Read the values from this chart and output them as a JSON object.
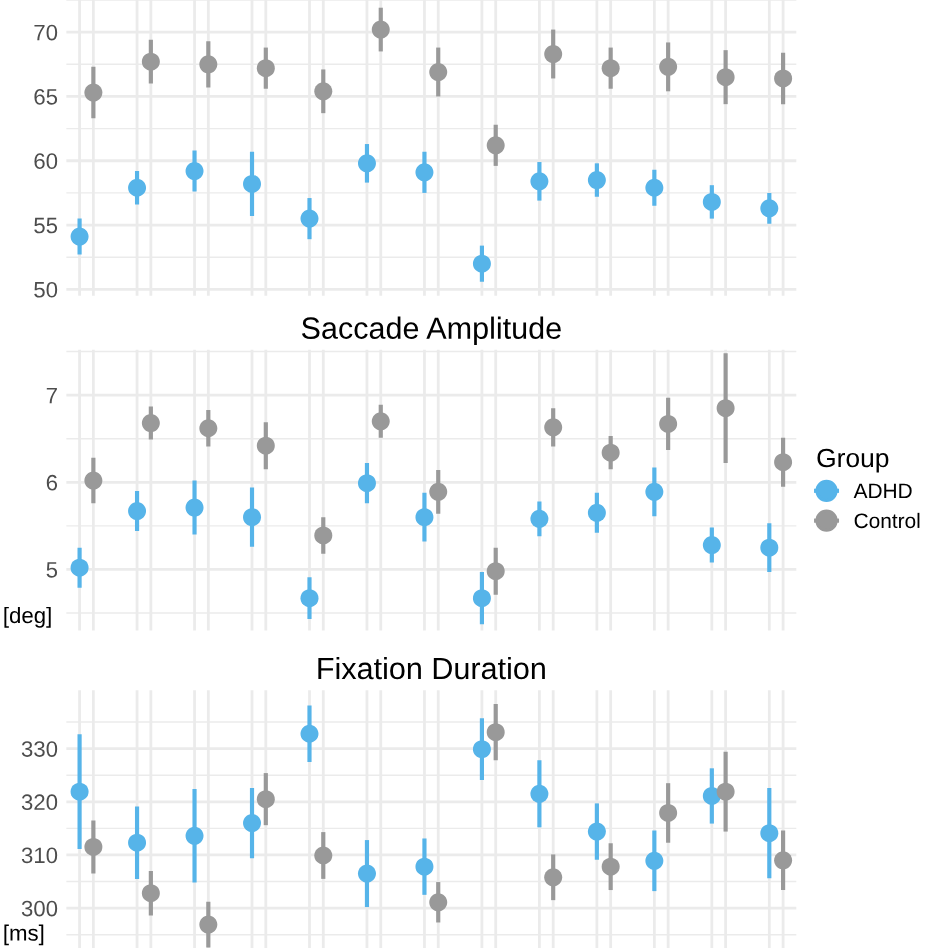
{
  "chart_data": [
    {
      "type": "scatter",
      "categories": [
        null,
        null,
        null,
        null,
        null,
        null,
        null,
        null,
        null,
        null,
        null,
        null,
        null
      ],
      "ylim": [
        49.5,
        72.5
      ],
      "yticks": [
        50,
        55,
        60,
        65,
        70
      ],
      "grid": true,
      "legend": false,
      "marker": "circle",
      "tick_labels": "y",
      "series": [
        {
          "color": "#56b4e9",
          "values": [
            54.1,
            57.9,
            59.2,
            58.2,
            55.5,
            59.8,
            59.1,
            52.0,
            58.4,
            58.5,
            57.9,
            56.8,
            56.3
          ],
          "errors": [
            1.4,
            1.3,
            1.6,
            2.5,
            1.6,
            1.5,
            1.6,
            1.4,
            1.5,
            1.3,
            1.4,
            1.3,
            1.2
          ]
        },
        {
          "color": "#999999",
          "values": [
            65.3,
            67.7,
            67.5,
            67.2,
            65.4,
            70.2,
            66.9,
            61.2,
            68.3,
            67.2,
            67.3,
            66.5,
            66.4
          ],
          "errors": [
            2.0,
            1.7,
            1.8,
            1.6,
            1.7,
            1.7,
            1.9,
            1.6,
            1.9,
            1.6,
            1.9,
            2.1,
            2.0
          ]
        }
      ]
    },
    {
      "type": "scatter",
      "title": "Saccade Amplitude",
      "ylabel": "[deg]",
      "legend_title": "Group",
      "categories": [
        null,
        null,
        null,
        null,
        null,
        null,
        null,
        null,
        null,
        null,
        null,
        null,
        null
      ],
      "ylim": [
        4.3,
        7.52
      ],
      "yticks": [
        5,
        6,
        7
      ],
      "grid": true,
      "legend": "right",
      "marker": "circle",
      "tick_labels": "y",
      "series": [
        {
          "name": "ADHD",
          "color": "#56b4e9",
          "values": [
            5.02,
            5.67,
            5.71,
            5.6,
            4.67,
            5.99,
            5.6,
            4.67,
            5.58,
            5.65,
            5.89,
            5.28,
            5.25
          ],
          "errors": [
            0.23,
            0.23,
            0.31,
            0.34,
            0.24,
            0.23,
            0.28,
            0.3,
            0.2,
            0.23,
            0.28,
            0.2,
            0.28
          ]
        },
        {
          "name": "Control",
          "color": "#999999",
          "values": [
            6.02,
            6.68,
            6.62,
            6.42,
            5.39,
            6.7,
            5.89,
            4.98,
            6.63,
            6.34,
            6.67,
            6.85,
            6.23
          ],
          "errors": [
            0.26,
            0.19,
            0.21,
            0.27,
            0.21,
            0.19,
            0.25,
            0.27,
            0.22,
            0.19,
            0.3,
            0.63,
            0.28
          ]
        }
      ]
    },
    {
      "type": "scatter",
      "title": "Fixation Duration",
      "ylabel": "[ms]",
      "categories": [
        null,
        null,
        null,
        null,
        null,
        null,
        null,
        null,
        null,
        null,
        null,
        null,
        null
      ],
      "ylim": [
        292.5,
        341
      ],
      "yticks": [
        300,
        310,
        320,
        330
      ],
      "grid": true,
      "legend": false,
      "marker": "circle",
      "tick_labels": "y",
      "series": [
        {
          "color": "#56b4e9",
          "values": [
            321.9,
            312.3,
            313.6,
            316,
            332.8,
            306.5,
            307.8,
            329.9,
            321.5,
            314.4,
            308.9,
            321.1,
            314.1
          ],
          "errors": [
            10.8,
            6.8,
            8.8,
            6.6,
            5.3,
            6.3,
            5.3,
            5.8,
            6.3,
            5.3,
            5.7,
            5.2,
            8.5
          ]
        },
        {
          "color": "#999999",
          "values": [
            311.5,
            302.8,
            296.9,
            320.5,
            309.9,
            null,
            301.1,
            333.1,
            305.8,
            307.8,
            317.9,
            321.9,
            309
          ],
          "errors": [
            5,
            4.2,
            4.3,
            4.9,
            4.4,
            null,
            3.8,
            5.3,
            4.3,
            4.4,
            5.6,
            7.5,
            5.6
          ]
        }
      ]
    }
  ]
}
